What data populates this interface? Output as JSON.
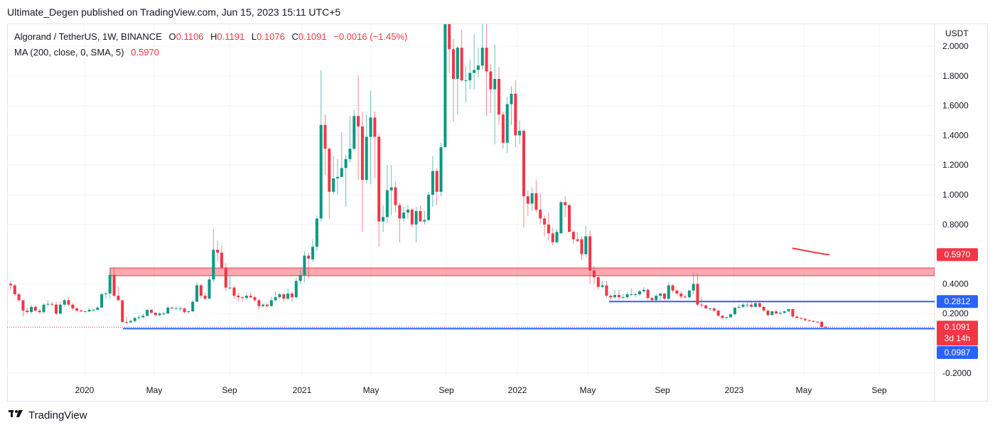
{
  "published": "Ultimate_Degen published on TradingView.com, Jun 15, 2023 15:11 UTC+5",
  "legend": {
    "symbol": "Algorand / TetherUS, 1W, BINANCE",
    "o_label": "O",
    "o": "0.1106",
    "h_label": "H",
    "h": "0.1191",
    "l_label": "L",
    "l": "0.1076",
    "c_label": "C",
    "c": "0.1091",
    "change": "−0.0016 (−1.45%)",
    "ma_label": "MA (200, close, 0, SMA, 5)",
    "ma_value": "0.5970"
  },
  "footer": {
    "brand": "TradingView",
    "logo_text": "17"
  },
  "colors": {
    "up": "#089981",
    "down": "#f23645",
    "line_blue": "#2962ff",
    "zone": "#f23645",
    "grid": "#f0f3fa"
  },
  "chart_data": {
    "type": "candlestick",
    "interval": "1W",
    "currency": "USDT",
    "ylim": [
      -0.25,
      2.15
    ],
    "grid": true,
    "y_ticks": [
      "2.0000",
      "1.8000",
      "1.6000",
      "1.4000",
      "1.2000",
      "1.0000",
      "0.8000",
      "0.4000",
      "0.2000",
      "-0.2000"
    ],
    "y_tick_values": [
      2.0,
      1.8,
      1.6,
      1.4,
      1.2,
      1.0,
      0.8,
      0.4,
      0.2,
      -0.2
    ],
    "x_ticks": [
      "2020",
      "May",
      "Sep",
      "2021",
      "May",
      "Sep",
      "2022",
      "May",
      "Sep",
      "2023",
      "May",
      "Sep"
    ],
    "candles_ohlc": [
      [
        0.4,
        0.42,
        0.36,
        0.39
      ],
      [
        0.39,
        0.4,
        0.32,
        0.33
      ],
      [
        0.33,
        0.34,
        0.28,
        0.29
      ],
      [
        0.29,
        0.29,
        0.18,
        0.22
      ],
      [
        0.22,
        0.24,
        0.2,
        0.21
      ],
      [
        0.21,
        0.26,
        0.2,
        0.245
      ],
      [
        0.245,
        0.26,
        0.21,
        0.22
      ],
      [
        0.22,
        0.23,
        0.2,
        0.21
      ],
      [
        0.21,
        0.27,
        0.2,
        0.26
      ],
      [
        0.26,
        0.29,
        0.25,
        0.265
      ],
      [
        0.265,
        0.28,
        0.25,
        0.26
      ],
      [
        0.26,
        0.28,
        0.19,
        0.2
      ],
      [
        0.2,
        0.28,
        0.19,
        0.26
      ],
      [
        0.26,
        0.3,
        0.25,
        0.29
      ],
      [
        0.29,
        0.31,
        0.25,
        0.26
      ],
      [
        0.26,
        0.27,
        0.22,
        0.235
      ],
      [
        0.235,
        0.24,
        0.21,
        0.22
      ],
      [
        0.22,
        0.23,
        0.21,
        0.215
      ],
      [
        0.215,
        0.22,
        0.21,
        0.215
      ],
      [
        0.215,
        0.24,
        0.21,
        0.225
      ],
      [
        0.225,
        0.23,
        0.22,
        0.225
      ],
      [
        0.225,
        0.25,
        0.22,
        0.24
      ],
      [
        0.24,
        0.34,
        0.24,
        0.33
      ],
      [
        0.33,
        0.35,
        0.3,
        0.335
      ],
      [
        0.335,
        0.51,
        0.3,
        0.46
      ],
      [
        0.46,
        0.51,
        0.31,
        0.32
      ],
      [
        0.32,
        0.38,
        0.29,
        0.29
      ],
      [
        0.29,
        0.29,
        0.14,
        0.143
      ],
      [
        0.143,
        0.18,
        0.13,
        0.14
      ],
      [
        0.14,
        0.16,
        0.14,
        0.15
      ],
      [
        0.15,
        0.18,
        0.14,
        0.17
      ],
      [
        0.17,
        0.19,
        0.16,
        0.175
      ],
      [
        0.175,
        0.2,
        0.17,
        0.185
      ],
      [
        0.185,
        0.23,
        0.18,
        0.225
      ],
      [
        0.225,
        0.23,
        0.2,
        0.205
      ],
      [
        0.205,
        0.21,
        0.18,
        0.19
      ],
      [
        0.19,
        0.21,
        0.18,
        0.2
      ],
      [
        0.2,
        0.21,
        0.19,
        0.2
      ],
      [
        0.2,
        0.25,
        0.2,
        0.24
      ],
      [
        0.24,
        0.25,
        0.23,
        0.235
      ],
      [
        0.235,
        0.25,
        0.23,
        0.235
      ],
      [
        0.235,
        0.25,
        0.22,
        0.235
      ],
      [
        0.235,
        0.24,
        0.2,
        0.21
      ],
      [
        0.21,
        0.22,
        0.2,
        0.215
      ],
      [
        0.215,
        0.29,
        0.21,
        0.28
      ],
      [
        0.28,
        0.41,
        0.28,
        0.39
      ],
      [
        0.39,
        0.4,
        0.3,
        0.32
      ],
      [
        0.32,
        0.34,
        0.29,
        0.3
      ],
      [
        0.3,
        0.45,
        0.3,
        0.43
      ],
      [
        0.43,
        0.77,
        0.41,
        0.63
      ],
      [
        0.63,
        0.69,
        0.55,
        0.61
      ],
      [
        0.61,
        0.66,
        0.54,
        0.51
      ],
      [
        0.51,
        0.54,
        0.35,
        0.375
      ],
      [
        0.375,
        0.45,
        0.36,
        0.375
      ],
      [
        0.375,
        0.39,
        0.3,
        0.32
      ],
      [
        0.32,
        0.34,
        0.28,
        0.31
      ],
      [
        0.31,
        0.32,
        0.28,
        0.305
      ],
      [
        0.305,
        0.34,
        0.29,
        0.32
      ],
      [
        0.32,
        0.34,
        0.3,
        0.31
      ],
      [
        0.31,
        0.32,
        0.28,
        0.29
      ],
      [
        0.29,
        0.3,
        0.23,
        0.25
      ],
      [
        0.25,
        0.27,
        0.24,
        0.26
      ],
      [
        0.26,
        0.27,
        0.24,
        0.25
      ],
      [
        0.25,
        0.31,
        0.25,
        0.29
      ],
      [
        0.29,
        0.35,
        0.28,
        0.31
      ],
      [
        0.31,
        0.34,
        0.3,
        0.33
      ],
      [
        0.33,
        0.34,
        0.28,
        0.3
      ],
      [
        0.3,
        0.37,
        0.29,
        0.335
      ],
      [
        0.335,
        0.35,
        0.28,
        0.31
      ],
      [
        0.31,
        0.44,
        0.3,
        0.42
      ],
      [
        0.42,
        0.5,
        0.4,
        0.46
      ],
      [
        0.46,
        0.62,
        0.41,
        0.59
      ],
      [
        0.59,
        0.61,
        0.44,
        0.57
      ],
      [
        0.565,
        0.7,
        0.55,
        0.65
      ],
      [
        0.65,
        0.86,
        0.62,
        0.84
      ],
      [
        0.84,
        1.84,
        0.82,
        1.47
      ],
      [
        1.47,
        1.54,
        1.13,
        1.31
      ],
      [
        1.31,
        1.32,
        0.84,
        1.02
      ],
      [
        1.02,
        1.26,
        1.0,
        1.11
      ],
      [
        1.11,
        1.24,
        1.0,
        1.12
      ],
      [
        1.12,
        1.42,
        1.12,
        1.18
      ],
      [
        1.18,
        1.27,
        0.92,
        1.24
      ],
      [
        1.24,
        1.53,
        1.22,
        1.31
      ],
      [
        1.31,
        1.57,
        1.3,
        1.53
      ],
      [
        1.53,
        1.8,
        1.1,
        1.46
      ],
      [
        1.46,
        1.56,
        0.75,
        1.1
      ],
      [
        1.1,
        1.54,
        1.08,
        1.39
      ],
      [
        1.39,
        1.7,
        1.07,
        1.52
      ],
      [
        1.52,
        1.56,
        1.11,
        1.39
      ],
      [
        1.39,
        1.41,
        0.65,
        0.82
      ],
      [
        0.82,
        0.93,
        0.75,
        0.85
      ],
      [
        0.85,
        1.2,
        0.81,
        1.03
      ],
      [
        1.03,
        1.2,
        0.86,
        1.05
      ],
      [
        1.05,
        1.09,
        0.88,
        0.93
      ],
      [
        0.93,
        0.95,
        0.68,
        0.84
      ],
      [
        0.84,
        0.92,
        0.82,
        0.88
      ],
      [
        0.88,
        0.93,
        0.84,
        0.9
      ],
      [
        0.9,
        0.91,
        0.78,
        0.8
      ],
      [
        0.8,
        0.92,
        0.68,
        0.89
      ],
      [
        0.89,
        0.93,
        0.82,
        0.82
      ],
      [
        0.82,
        0.89,
        0.8,
        0.83
      ],
      [
        0.83,
        1.02,
        0.82,
        1.0
      ],
      [
        1.0,
        1.26,
        0.92,
        1.16
      ],
      [
        1.16,
        1.18,
        0.93,
        1.02
      ],
      [
        1.02,
        1.35,
        0.99,
        1.32
      ],
      [
        1.32,
        2.45,
        1.32,
        2.25
      ],
      [
        2.25,
        2.4,
        1.82,
        1.98
      ],
      [
        1.98,
        2.05,
        1.49,
        1.78
      ],
      [
        1.78,
        2.0,
        1.54,
        1.99
      ],
      [
        1.99,
        2.11,
        1.76,
        1.77
      ],
      [
        1.77,
        1.86,
        1.62,
        1.77
      ],
      [
        1.77,
        1.91,
        1.71,
        1.82
      ],
      [
        1.82,
        2.08,
        1.71,
        1.84
      ],
      [
        1.84,
        1.99,
        1.79,
        1.87
      ],
      [
        1.87,
        2.3,
        1.84,
        1.99
      ],
      [
        1.99,
        2.3,
        1.53,
        1.83
      ],
      [
        1.83,
        1.88,
        1.55,
        1.71
      ],
      [
        1.71,
        2.01,
        1.34,
        1.78
      ],
      [
        1.78,
        1.86,
        1.47,
        1.54
      ],
      [
        1.54,
        1.56,
        1.31,
        1.35
      ],
      [
        1.35,
        1.66,
        1.28,
        1.61
      ],
      [
        1.61,
        1.73,
        1.47,
        1.68
      ],
      [
        1.68,
        1.77,
        1.32,
        1.4
      ],
      [
        1.4,
        1.5,
        1.34,
        1.43
      ],
      [
        1.43,
        1.44,
        0.78,
        0.99
      ],
      [
        0.99,
        1.03,
        0.86,
        0.94
      ],
      [
        0.94,
        1.05,
        0.89,
        1.01
      ],
      [
        1.01,
        1.1,
        0.88,
        0.9
      ],
      [
        0.9,
        1.01,
        0.8,
        0.84
      ],
      [
        0.84,
        0.86,
        0.72,
        0.8
      ],
      [
        0.8,
        0.88,
        0.69,
        0.74
      ],
      [
        0.74,
        0.78,
        0.66,
        0.68
      ],
      [
        0.68,
        0.77,
        0.67,
        0.75
      ],
      [
        0.74,
        0.96,
        0.74,
        0.95
      ],
      [
        0.95,
        0.99,
        0.85,
        0.93
      ],
      [
        0.93,
        0.94,
        0.75,
        0.75
      ],
      [
        0.75,
        0.76,
        0.67,
        0.7
      ],
      [
        0.7,
        0.75,
        0.68,
        0.69
      ],
      [
        0.7,
        0.72,
        0.56,
        0.6
      ],
      [
        0.6,
        0.79,
        0.58,
        0.72
      ],
      [
        0.72,
        0.76,
        0.4,
        0.49
      ],
      [
        0.49,
        0.52,
        0.4,
        0.445
      ],
      [
        0.445,
        0.46,
        0.36,
        0.38
      ],
      [
        0.38,
        0.42,
        0.37,
        0.39
      ],
      [
        0.39,
        0.42,
        0.31,
        0.32
      ],
      [
        0.32,
        0.33,
        0.29,
        0.31
      ],
      [
        0.31,
        0.36,
        0.3,
        0.325
      ],
      [
        0.325,
        0.36,
        0.29,
        0.31
      ],
      [
        0.31,
        0.33,
        0.3,
        0.31
      ],
      [
        0.31,
        0.35,
        0.3,
        0.33
      ],
      [
        0.33,
        0.37,
        0.32,
        0.33
      ],
      [
        0.33,
        0.34,
        0.31,
        0.33
      ],
      [
        0.33,
        0.36,
        0.32,
        0.35
      ],
      [
        0.35,
        0.38,
        0.34,
        0.36
      ],
      [
        0.36,
        0.37,
        0.29,
        0.305
      ],
      [
        0.305,
        0.31,
        0.28,
        0.29
      ],
      [
        0.29,
        0.33,
        0.28,
        0.32
      ],
      [
        0.32,
        0.34,
        0.28,
        0.335
      ],
      [
        0.335,
        0.34,
        0.29,
        0.3
      ],
      [
        0.3,
        0.41,
        0.29,
        0.39
      ],
      [
        0.39,
        0.4,
        0.34,
        0.355
      ],
      [
        0.355,
        0.36,
        0.32,
        0.335
      ],
      [
        0.335,
        0.35,
        0.3,
        0.315
      ],
      [
        0.315,
        0.33,
        0.3,
        0.31
      ],
      [
        0.31,
        0.36,
        0.3,
        0.355
      ],
      [
        0.355,
        0.47,
        0.33,
        0.4
      ],
      [
        0.4,
        0.47,
        0.25,
        0.26
      ],
      [
        0.26,
        0.31,
        0.24,
        0.255
      ],
      [
        0.255,
        0.26,
        0.23,
        0.235
      ],
      [
        0.235,
        0.24,
        0.22,
        0.235
      ],
      [
        0.235,
        0.24,
        0.21,
        0.22
      ],
      [
        0.22,
        0.225,
        0.18,
        0.185
      ],
      [
        0.185,
        0.19,
        0.165,
        0.17
      ],
      [
        0.17,
        0.18,
        0.165,
        0.175
      ],
      [
        0.175,
        0.2,
        0.17,
        0.195
      ],
      [
        0.195,
        0.24,
        0.19,
        0.24
      ],
      [
        0.24,
        0.26,
        0.23,
        0.245
      ],
      [
        0.245,
        0.27,
        0.24,
        0.26
      ],
      [
        0.26,
        0.28,
        0.24,
        0.26
      ],
      [
        0.26,
        0.29,
        0.24,
        0.245
      ],
      [
        0.245,
        0.28,
        0.24,
        0.27
      ],
      [
        0.27,
        0.29,
        0.24,
        0.245
      ],
      [
        0.245,
        0.25,
        0.21,
        0.22
      ],
      [
        0.22,
        0.23,
        0.18,
        0.19
      ],
      [
        0.19,
        0.22,
        0.19,
        0.215
      ],
      [
        0.215,
        0.23,
        0.2,
        0.2
      ],
      [
        0.2,
        0.22,
        0.19,
        0.205
      ],
      [
        0.205,
        0.22,
        0.2,
        0.215
      ],
      [
        0.215,
        0.23,
        0.21,
        0.23
      ],
      [
        0.23,
        0.23,
        0.17,
        0.18
      ],
      [
        0.18,
        0.19,
        0.17,
        0.17
      ],
      [
        0.17,
        0.175,
        0.16,
        0.165
      ],
      [
        0.165,
        0.17,
        0.15,
        0.155
      ],
      [
        0.155,
        0.16,
        0.145,
        0.15
      ],
      [
        0.15,
        0.155,
        0.14,
        0.145
      ],
      [
        0.145,
        0.15,
        0.14,
        0.14
      ],
      [
        0.145,
        0.15,
        0.1,
        0.11
      ],
      [
        0.1106,
        0.1191,
        0.1076,
        0.1091
      ]
    ],
    "ma200_recent": [
      0.64,
      0.635,
      0.63,
      0.624,
      0.619,
      0.614,
      0.609,
      0.604,
      0.6,
      0.597
    ],
    "drawings": {
      "resistance_zone": [
        0.455,
        0.507
      ],
      "support_line_1": 0.2812,
      "support_line_2": 0.0987
    },
    "price_labels": {
      "ma": "0.5970",
      "line1": "0.2812",
      "last": "0.1091",
      "countdown": "3d 14h",
      "line2": "0.0987"
    }
  }
}
